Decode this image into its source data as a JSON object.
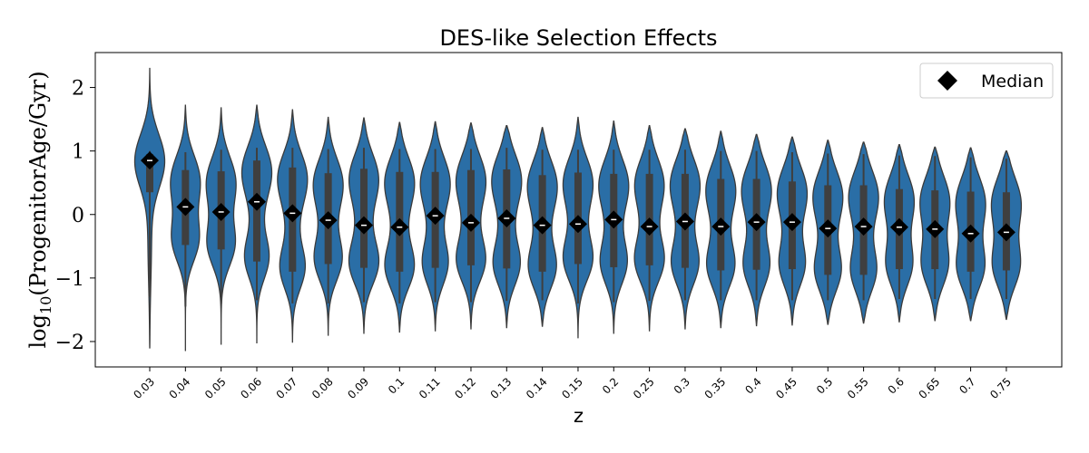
{
  "chart_data": {
    "type": "violin",
    "title": "DES-like Selection Effects",
    "xlabel": "z",
    "ylabel": "log10(ProgenitorAge/Gyr)",
    "ylim": [
      -2.4,
      2.55
    ],
    "yticks": [
      -2,
      -1,
      0,
      1,
      2
    ],
    "ytick_labels": [
      "−2",
      "−1",
      "0",
      "1",
      "2"
    ],
    "legend": {
      "label": "Median",
      "position": "top-right"
    },
    "colors": {
      "violin": "#2a6ea6",
      "edge": "#3b3b3b",
      "box": "#3f3f3f",
      "median_marker": "#000000"
    },
    "categories": [
      "0.03",
      "0.04",
      "0.05",
      "0.06",
      "0.07",
      "0.08",
      "0.09",
      "0.1",
      "0.11",
      "0.12",
      "0.13",
      "0.14",
      "0.15",
      "0.2",
      "0.25",
      "0.3",
      "0.35",
      "0.4",
      "0.45",
      "0.5",
      "0.55",
      "0.6",
      "0.65",
      "0.7",
      "0.75"
    ],
    "series": [
      {
        "z": "0.03",
        "min": -2.1,
        "max": 2.3,
        "q1": 0.35,
        "q3": 0.95,
        "median": 0.85,
        "wlo": -1.3,
        "whi": 1.0
      },
      {
        "z": "0.04",
        "min": -2.15,
        "max": 1.72,
        "q1": -0.48,
        "q3": 0.7,
        "median": 0.12,
        "wlo": -1.45,
        "whi": 0.98
      },
      {
        "z": "0.05",
        "min": -2.05,
        "max": 1.68,
        "q1": -0.55,
        "q3": 0.68,
        "median": 0.04,
        "wlo": -1.4,
        "whi": 1.02
      },
      {
        "z": "0.06",
        "min": -2.03,
        "max": 1.72,
        "q1": -0.74,
        "q3": 0.85,
        "median": 0.2,
        "wlo": -1.35,
        "whi": 1.05
      },
      {
        "z": "0.07",
        "min": -2.01,
        "max": 1.65,
        "q1": -0.9,
        "q3": 0.74,
        "median": 0.02,
        "wlo": -1.4,
        "whi": 1.05
      },
      {
        "z": "0.08",
        "min": -1.9,
        "max": 1.53,
        "q1": -0.78,
        "q3": 0.65,
        "median": -0.09,
        "wlo": -1.4,
        "whi": 1.03
      },
      {
        "z": "0.09",
        "min": -1.87,
        "max": 1.52,
        "q1": -0.84,
        "q3": 0.72,
        "median": -0.17,
        "wlo": -1.38,
        "whi": 1.05
      },
      {
        "z": "0.1",
        "min": -1.85,
        "max": 1.45,
        "q1": -0.9,
        "q3": 0.67,
        "median": -0.2,
        "wlo": -1.4,
        "whi": 1.03
      },
      {
        "z": "0.11",
        "min": -1.83,
        "max": 1.46,
        "q1": -0.84,
        "q3": 0.67,
        "median": -0.02,
        "wlo": -1.38,
        "whi": 1.03
      },
      {
        "z": "0.12",
        "min": -1.8,
        "max": 1.44,
        "q1": -0.8,
        "q3": 0.7,
        "median": -0.13,
        "wlo": -1.38,
        "whi": 1.03
      },
      {
        "z": "0.13",
        "min": -1.78,
        "max": 1.4,
        "q1": -0.85,
        "q3": 0.71,
        "median": -0.06,
        "wlo": -1.36,
        "whi": 1.05
      },
      {
        "z": "0.14",
        "min": -1.76,
        "max": 1.37,
        "q1": -0.9,
        "q3": 0.62,
        "median": -0.17,
        "wlo": -1.35,
        "whi": 1.02
      },
      {
        "z": "0.15",
        "min": -1.94,
        "max": 1.53,
        "q1": -0.78,
        "q3": 0.66,
        "median": -0.15,
        "wlo": -1.4,
        "whi": 1.02
      },
      {
        "z": "0.2",
        "min": -1.87,
        "max": 1.47,
        "q1": -0.83,
        "q3": 0.64,
        "median": -0.08,
        "wlo": -1.38,
        "whi": 1.02
      },
      {
        "z": "0.25",
        "min": -1.83,
        "max": 1.4,
        "q1": -0.8,
        "q3": 0.64,
        "median": -0.19,
        "wlo": -1.36,
        "whi": 1.02
      },
      {
        "z": "0.3",
        "min": -1.8,
        "max": 1.35,
        "q1": -0.84,
        "q3": 0.64,
        "median": -0.11,
        "wlo": -1.35,
        "whi": 1.02
      },
      {
        "z": "0.35",
        "min": -1.78,
        "max": 1.31,
        "q1": -0.88,
        "q3": 0.56,
        "median": -0.19,
        "wlo": -1.35,
        "whi": 1.0
      },
      {
        "z": "0.4",
        "min": -1.75,
        "max": 1.26,
        "q1": -0.87,
        "q3": 0.56,
        "median": -0.12,
        "wlo": -1.35,
        "whi": 1.0
      },
      {
        "z": "0.45",
        "min": -1.74,
        "max": 1.22,
        "q1": -0.86,
        "q3": 0.52,
        "median": -0.12,
        "wlo": -1.35,
        "whi": 0.98
      },
      {
        "z": "0.5",
        "min": -1.73,
        "max": 1.17,
        "q1": -0.95,
        "q3": 0.46,
        "median": -0.22,
        "wlo": -1.35,
        "whi": 0.96
      },
      {
        "z": "0.55",
        "min": -1.71,
        "max": 1.14,
        "q1": -0.95,
        "q3": 0.46,
        "median": -0.19,
        "wlo": -1.35,
        "whi": 0.95
      },
      {
        "z": "0.6",
        "min": -1.69,
        "max": 1.1,
        "q1": -0.86,
        "q3": 0.4,
        "median": -0.2,
        "wlo": -1.33,
        "whi": 0.93
      },
      {
        "z": "0.65",
        "min": -1.67,
        "max": 1.06,
        "q1": -0.86,
        "q3": 0.38,
        "median": -0.23,
        "wlo": -1.33,
        "whi": 0.92
      },
      {
        "z": "0.7",
        "min": -1.67,
        "max": 1.05,
        "q1": -0.9,
        "q3": 0.36,
        "median": -0.3,
        "wlo": -1.33,
        "whi": 0.9
      },
      {
        "z": "0.75",
        "min": -1.65,
        "max": 1.0,
        "q1": -0.88,
        "q3": 0.35,
        "median": -0.28,
        "wlo": -1.33,
        "whi": 0.88
      }
    ]
  }
}
